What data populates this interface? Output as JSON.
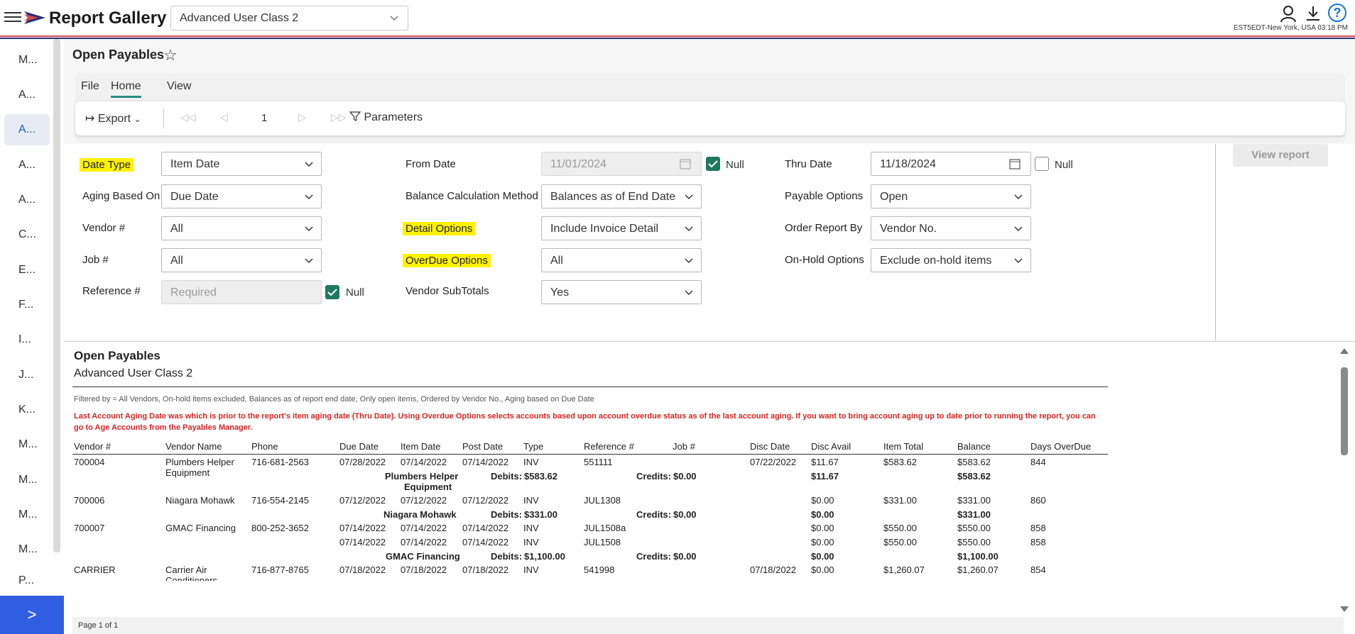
{
  "header": {
    "app_title": "Report Gallery",
    "selected_class": "Advanced User Class 2",
    "timezone": "EST5EDT-New York, USA 03:18 PM",
    "help_glyph": "?"
  },
  "sidebar": {
    "items": [
      "M...",
      "A...",
      "A...",
      "A...",
      "A...",
      "C...",
      "E...",
      "F...",
      "I...",
      "J...",
      "K...",
      "M...",
      "M...",
      "M...",
      "M...",
      "P..."
    ],
    "active_index": 2,
    "expand_glyph": ">"
  },
  "main": {
    "page_title": "Open Payables",
    "star_glyph": "☆"
  },
  "ribbon": {
    "tabs": [
      "File",
      "Home",
      "View"
    ],
    "active_tab": "Home",
    "export_label": "Export",
    "page_number": "1",
    "parameters_label": "Parameters"
  },
  "parameters": {
    "date_type": {
      "label": "Date Type",
      "value": "Item Date"
    },
    "aging_based_on": {
      "label": "Aging Based On",
      "value": "Due Date"
    },
    "vendor": {
      "label": "Vendor #",
      "value": "All"
    },
    "job": {
      "label": "Job #",
      "value": "All"
    },
    "reference": {
      "label": "Reference #",
      "placeholder": "Required",
      "null_label": "Null"
    },
    "from_date": {
      "label": "From Date",
      "value": "11/01/2024",
      "null_label": "Null"
    },
    "balance_method": {
      "label": "Balance Calculation Method",
      "value": "Balances as of End Date"
    },
    "detail_options": {
      "label": "Detail Options",
      "value": "Include Invoice Detail"
    },
    "overdue_options": {
      "label": "OverDue Options",
      "value": "All"
    },
    "vendor_subtotals": {
      "label": "Vendor SubTotals",
      "value": "Yes"
    },
    "thru_date": {
      "label": "Thru Date",
      "value": "11/18/2024",
      "null_label": "Null"
    },
    "payable_options": {
      "label": "Payable Options",
      "value": "Open"
    },
    "order_report_by": {
      "label": "Order Report By",
      "value": "Vendor No."
    },
    "onhold_options": {
      "label": "On-Hold Options",
      "value": "Exclude on-hold items"
    },
    "view_report_label": "View report"
  },
  "report": {
    "title": "Open Payables",
    "subtitle": "Advanced User Class 2",
    "filter_text": "Filtered by = All Vendors, On-hold items excluded, Balances as of report end date, Only open items, Ordered by Vendor No., Aging based on Due Date",
    "warning_text": "Last Account Aging Date was  which is prior to the report's item aging date (Thru Date). Using Overdue Options selects accounts based upon account overdue status as of the last account aging. If you want to bring account aging up to date prior to running the report, you can go to Age Accounts from the Payables Manager.",
    "columns": [
      "Vendor #",
      "Vendor Name",
      "Phone",
      "Due Date",
      "Item Date",
      "Post Date",
      "Type",
      "Reference #",
      "Job #",
      "Disc Date",
      "Disc Avail",
      "Item Total",
      "Balance",
      "Days OverDue"
    ],
    "rows": [
      {
        "vendor": "700004",
        "name": "Plumbers Helper",
        "name2": "Equipment",
        "phone": "716-681-2563",
        "due": "07/28/2022",
        "item": "07/14/2022",
        "post": "07/14/2022",
        "type": "INV",
        "ref": "551111",
        "disc_date": "07/22/2022",
        "disc": "$11.67",
        "total": "$583.62",
        "bal": "$583.62",
        "days": "844"
      },
      {
        "vendor": "700006",
        "name": "Niagara Mohawk",
        "phone": "716-554-2145",
        "due": "07/12/2022",
        "item": "07/12/2022",
        "post": "07/12/2022",
        "type": "INV",
        "ref": "JUL1308",
        "disc": "$0.00",
        "total": "$331.00",
        "bal": "$331.00",
        "days": "860"
      },
      {
        "vendor": "700007",
        "name": "GMAC Financing",
        "phone": "800-252-3652",
        "due": "07/14/2022",
        "item": "07/14/2022",
        "post": "07/14/2022",
        "type": "INV",
        "ref": "JUL1508a",
        "disc": "$0.00",
        "total": "$550.00",
        "bal": "$550.00",
        "days": "858"
      },
      {
        "due": "07/14/2022",
        "item": "07/14/2022",
        "post": "07/14/2022",
        "type": "INV",
        "ref": "JUL1508",
        "disc": "$0.00",
        "total": "$550.00",
        "bal": "$550.00",
        "days": "858"
      },
      {
        "vendor": "CARRIER",
        "name": "Carrier Air",
        "name2": "Conditioners",
        "phone": "716-877-8765",
        "due": "07/18/2022",
        "item": "07/18/2022",
        "post": "07/18/2022",
        "type": "INV",
        "ref": "541998",
        "disc_date": "07/18/2022",
        "disc": "$0.00",
        "total": "$1,260.07",
        "bal": "$1,260.07",
        "days": "854"
      }
    ],
    "subtotals": [
      {
        "name": "Plumbers Helper",
        "name2": "Equipment",
        "debits_label": "Debits:",
        "debits": "$583.62",
        "credits_label": "Credits:",
        "credits": "$0.00",
        "disc": "$11.67",
        "bal": "$583.62"
      },
      {
        "name": "Niagara Mohawk",
        "debits_label": "Debits:",
        "debits": "$331.00",
        "credits_label": "Credits:",
        "credits": "$0.00",
        "disc": "$0.00",
        "bal": "$331.00"
      },
      {
        "name": "GMAC Financing",
        "debits_label": "Debits:",
        "debits": "$1,100.00",
        "credits_label": "Credits:",
        "credits": "$0.00",
        "disc": "$0.00",
        "bal": "$1,100.00"
      }
    ],
    "footer": "Page 1 of 1"
  },
  "colors": {
    "accent": "#2f5fe0",
    "highlight": "#fff200",
    "checkbox": "#1e7a5f",
    "warning": "#e02020",
    "stripe_red": "#d24a52",
    "stripe_navy": "#2b2f73"
  }
}
